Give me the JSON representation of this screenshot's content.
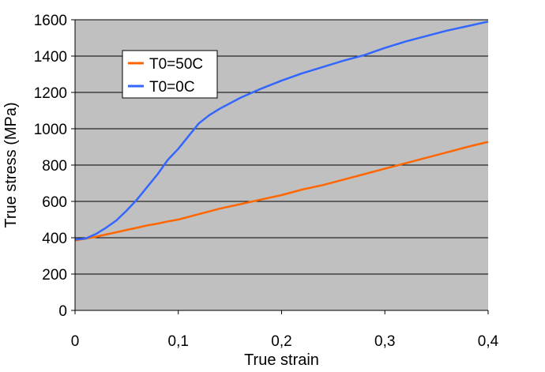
{
  "chart_data": {
    "type": "line",
    "xlabel": "True strain",
    "ylabel": "True stress (MPa)",
    "xlim": [
      0,
      0.4
    ],
    "ylim": [
      0,
      1600
    ],
    "x_ticks": [
      "0",
      "0,1",
      "0,2",
      "0,3",
      "0,4"
    ],
    "y_ticks": [
      "0",
      "200",
      "400",
      "600",
      "800",
      "1000",
      "1200",
      "1400",
      "1600"
    ],
    "grid": "horizontal",
    "legend_position": "top-left",
    "plot_background": "#C0C0C0",
    "series": [
      {
        "name": "T0=50C",
        "color": "#FF6600",
        "x": [
          0,
          0.01,
          0.02,
          0.03,
          0.04,
          0.05,
          0.06,
          0.07,
          0.08,
          0.09,
          0.1,
          0.12,
          0.14,
          0.16,
          0.18,
          0.2,
          0.22,
          0.24,
          0.26,
          0.28,
          0.3,
          0.32,
          0.34,
          0.36,
          0.38,
          0.4
        ],
        "y": [
          385,
          395,
          405,
          418,
          430,
          443,
          455,
          468,
          478,
          490,
          500,
          530,
          560,
          585,
          610,
          635,
          665,
          690,
          720,
          750,
          780,
          810,
          840,
          870,
          900,
          928
        ]
      },
      {
        "name": "T0=0C",
        "color": "#3366FF",
        "x": [
          0,
          0.01,
          0.02,
          0.03,
          0.04,
          0.05,
          0.06,
          0.07,
          0.08,
          0.09,
          0.1,
          0.11,
          0.12,
          0.13,
          0.14,
          0.16,
          0.18,
          0.2,
          0.22,
          0.24,
          0.26,
          0.28,
          0.3,
          0.32,
          0.34,
          0.36,
          0.38,
          0.4
        ],
        "y": [
          390,
          395,
          420,
          455,
          495,
          550,
          610,
          680,
          750,
          830,
          890,
          960,
          1030,
          1075,
          1110,
          1170,
          1220,
          1265,
          1305,
          1340,
          1375,
          1405,
          1445,
          1480,
          1510,
          1540,
          1565,
          1590
        ]
      }
    ]
  }
}
